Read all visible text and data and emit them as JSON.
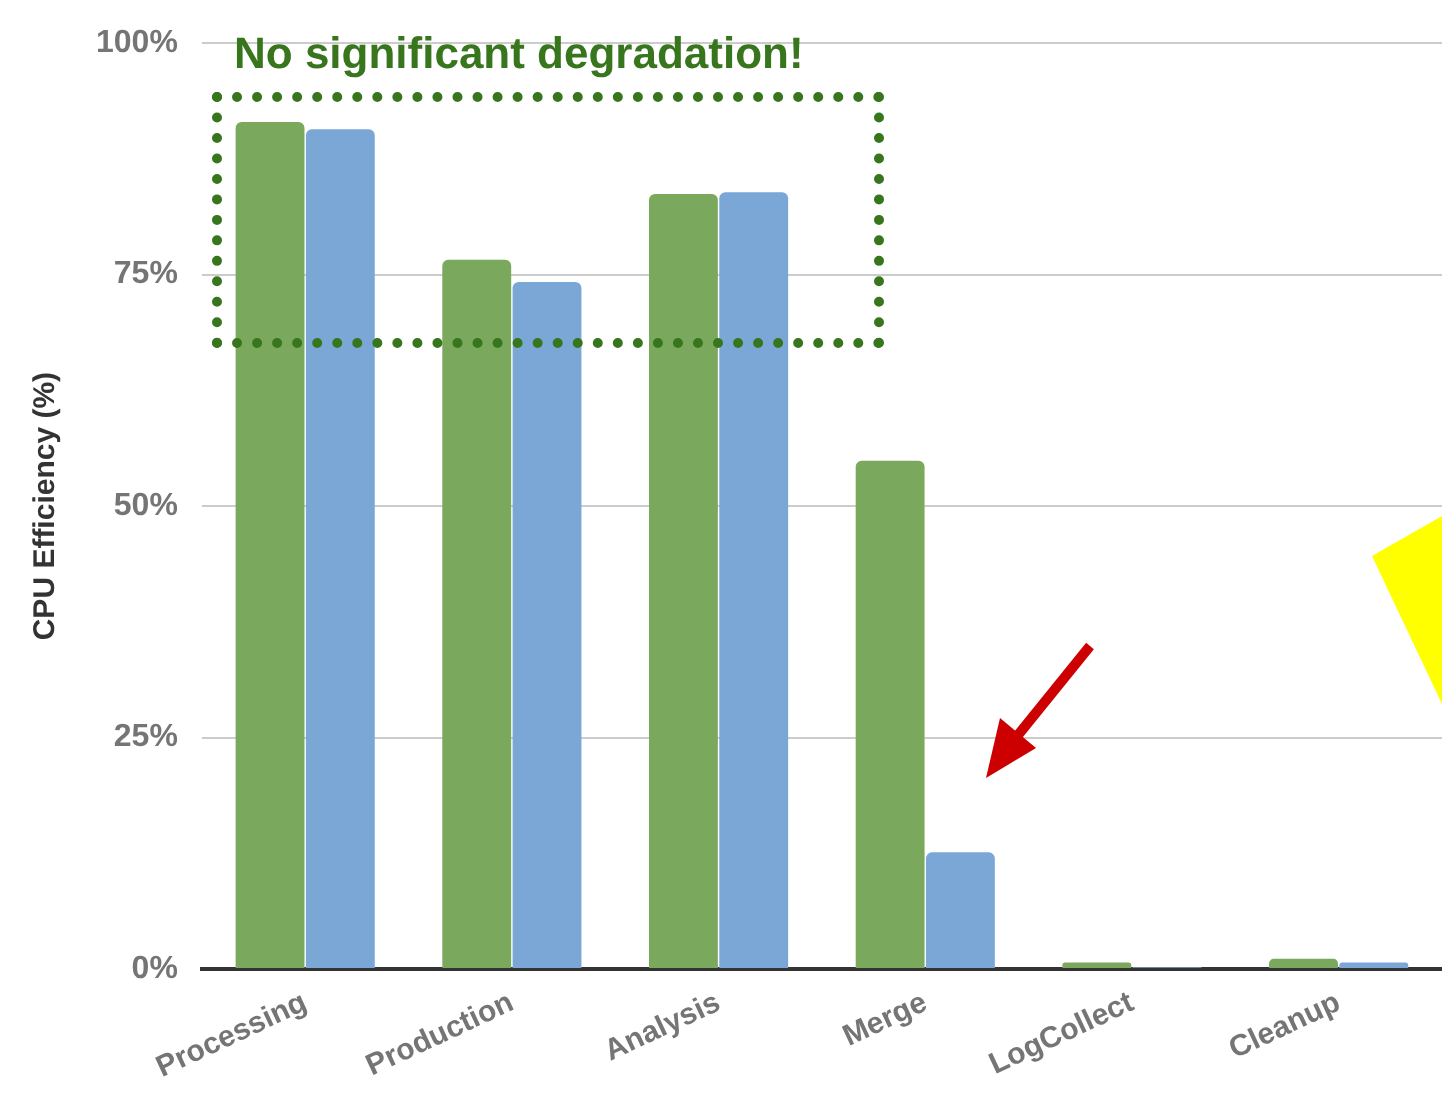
{
  "chart_data": {
    "type": "bar",
    "ylabel": "CPU Efficiency (%)",
    "annotations": [
      "No significant degradation!"
    ],
    "categories": [
      "Processing",
      "Production",
      "Analysis",
      "Merge",
      "LogCollect",
      "Cleanup"
    ],
    "series": [
      {
        "color": "#7aa85c",
        "values": [
          91.5,
          76.6,
          83.7,
          54.9,
          0.7,
          1.1
        ]
      },
      {
        "color": "#7ba7d7",
        "values": [
          90.7,
          74.2,
          83.9,
          12.6,
          0.2,
          0.7
        ]
      }
    ],
    "ylim": [
      0,
      100
    ],
    "yticks": [
      {
        "value": 0,
        "label": "0%"
      },
      {
        "value": 25,
        "label": "25%"
      },
      {
        "value": 50,
        "label": "50%"
      },
      {
        "value": 75,
        "label": "75%"
      },
      {
        "value": 100,
        "label": "100%"
      }
    ],
    "grid": "y",
    "legend": false
  }
}
